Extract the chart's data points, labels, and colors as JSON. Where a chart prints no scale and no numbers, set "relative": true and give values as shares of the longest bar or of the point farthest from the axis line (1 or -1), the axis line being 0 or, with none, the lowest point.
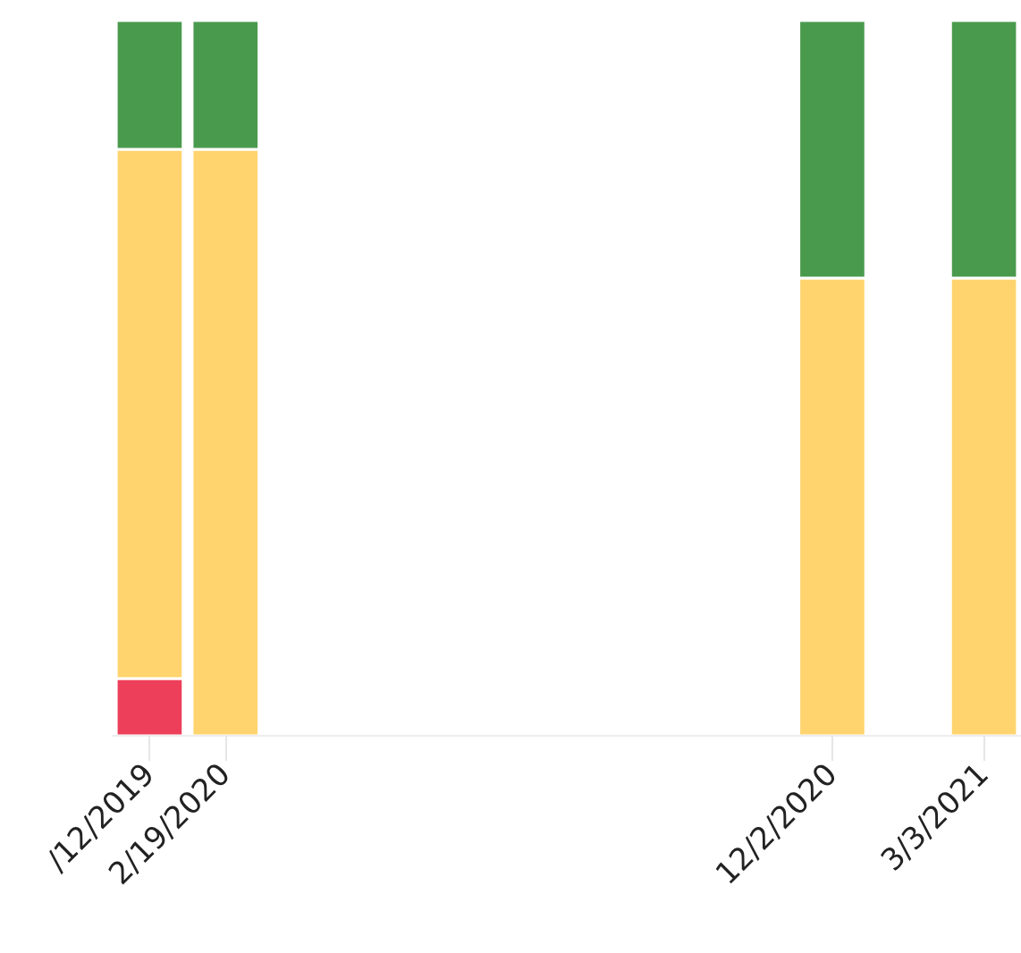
{
  "chart_data": {
    "type": "bar",
    "stacked": true,
    "relative": true,
    "grid": false,
    "categories": [
      "/12/2019",
      "2/19/2020",
      null,
      null,
      null,
      null,
      null,
      null,
      null,
      "12/2/2020",
      null,
      "3/3/2021"
    ],
    "series": [
      {
        "color": "#ee3f5a",
        "values": [
          0.08,
          null,
          null,
          null,
          null,
          null,
          null,
          null,
          null,
          null,
          null,
          null
        ]
      },
      {
        "color": "#ffd46e",
        "values": [
          0.74,
          0.82,
          null,
          null,
          null,
          null,
          null,
          null,
          null,
          0.64,
          null,
          0.64
        ]
      },
      {
        "color": "#4a9a4e",
        "values": [
          0.18,
          0.18,
          null,
          null,
          null,
          null,
          null,
          null,
          null,
          0.36,
          null,
          0.36
        ]
      }
    ]
  }
}
